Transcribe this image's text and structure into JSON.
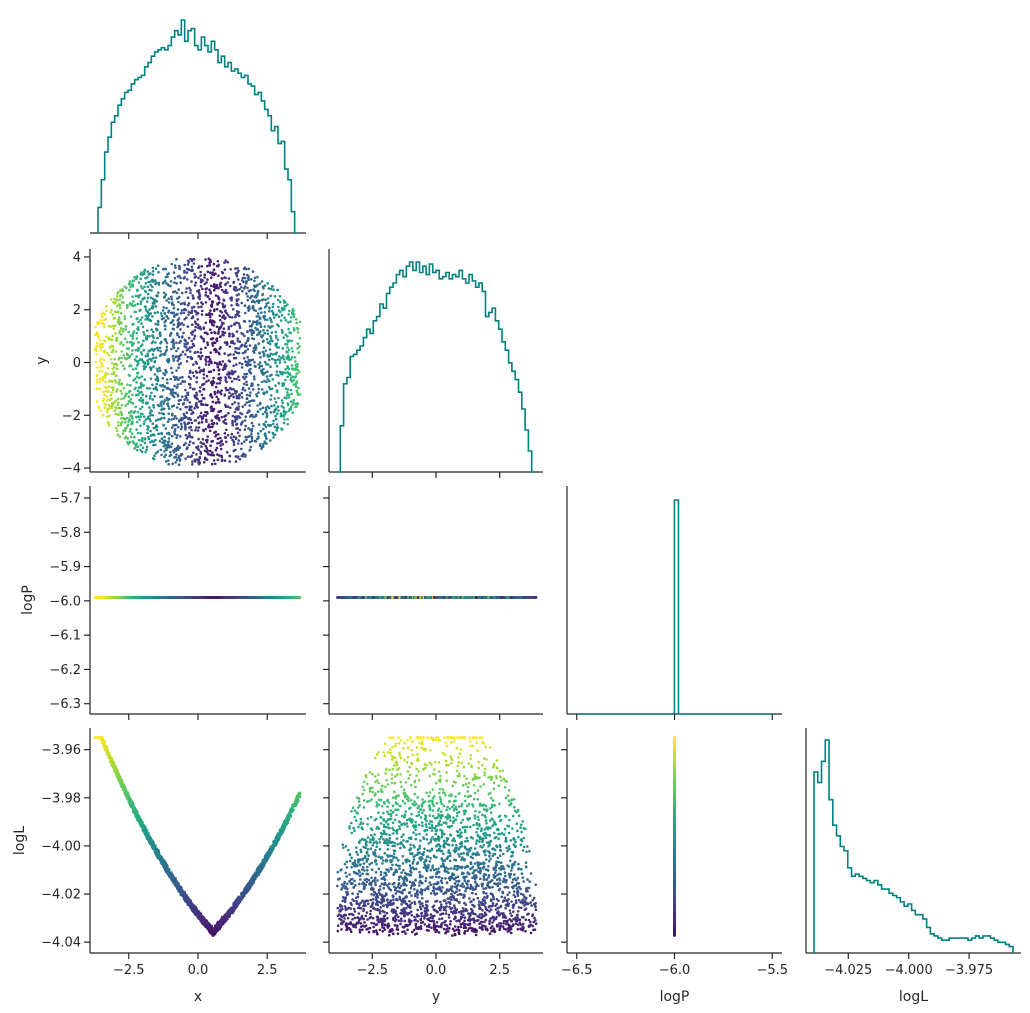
{
  "chart_data": {
    "type": "corner",
    "variables": [
      "x",
      "y",
      "logP",
      "logL"
    ],
    "hist_color": "#008080",
    "scatter_colormap": "viridis",
    "scatter_color_by": "logL",
    "diagonal": [
      {
        "var": "x",
        "type": "histogram-step",
        "range": [
          -3.9,
          3.9
        ],
        "counts": [
          0.12,
          0.25,
          0.38,
          0.45,
          0.52,
          0.55,
          0.6,
          0.63,
          0.66,
          0.67,
          0.7,
          0.72,
          0.73,
          0.74,
          0.78,
          0.8,
          0.83,
          0.85,
          0.86,
          0.87,
          0.86,
          0.88,
          0.92,
          0.95,
          0.93,
          1.0,
          0.9,
          0.95,
          0.96,
          0.88,
          0.86,
          0.92,
          0.88,
          0.85,
          0.9,
          0.86,
          0.8,
          0.83,
          0.78,
          0.8,
          0.76,
          0.77,
          0.75,
          0.73,
          0.74,
          0.7,
          0.69,
          0.65,
          0.66,
          0.62,
          0.58,
          0.55,
          0.48,
          0.5,
          0.42,
          0.43,
          0.3,
          0.25,
          0.1,
          0.0
        ]
      },
      {
        "var": "y",
        "type": "histogram-step",
        "range": [
          -4.0,
          4.0
        ],
        "counts": [
          0.0,
          0.22,
          0.42,
          0.45,
          0.55,
          0.56,
          0.58,
          0.6,
          0.64,
          0.68,
          0.66,
          0.72,
          0.74,
          0.8,
          0.78,
          0.85,
          0.88,
          0.9,
          0.94,
          0.96,
          0.93,
          0.98,
          1.0,
          0.96,
          1.0,
          0.95,
          0.98,
          0.94,
          0.99,
          0.95,
          0.96,
          0.92,
          0.93,
          0.95,
          0.92,
          0.94,
          0.93,
          0.96,
          0.92,
          0.9,
          0.94,
          0.91,
          0.88,
          0.9,
          0.86,
          0.74,
          0.76,
          0.78,
          0.72,
          0.68,
          0.62,
          0.58,
          0.52,
          0.48,
          0.44,
          0.38,
          0.3,
          0.2,
          0.1,
          0.0
        ]
      },
      {
        "var": "logP",
        "type": "histogram-step",
        "range": [
          -6.5,
          -5.5
        ],
        "spike_at": -5.99
      },
      {
        "var": "logL",
        "type": "histogram-step",
        "range": [
          -4.0409,
          -3.9554
        ],
        "counts": [
          0.85,
          0.8,
          0.9,
          1.0,
          0.72,
          0.6,
          0.55,
          0.5,
          0.48,
          0.4,
          0.36,
          0.37,
          0.36,
          0.35,
          0.34,
          0.33,
          0.34,
          0.32,
          0.3,
          0.3,
          0.28,
          0.27,
          0.26,
          0.24,
          0.22,
          0.23,
          0.2,
          0.18,
          0.18,
          0.16,
          0.12,
          0.09,
          0.08,
          0.07,
          0.06,
          0.06,
          0.07,
          0.07,
          0.07,
          0.07,
          0.07,
          0.06,
          0.07,
          0.08,
          0.07,
          0.08,
          0.08,
          0.07,
          0.06,
          0.05,
          0.05,
          0.04,
          0.03
        ]
      }
    ],
    "ticks": {
      "x": {
        "lim": [
          -3.9,
          3.9
        ],
        "values": [
          -2.5,
          0.0,
          2.5
        ],
        "labels": [
          "−2.5",
          "0.0",
          "2.5"
        ]
      },
      "y": {
        "lim": [
          -4.15,
          4.3
        ],
        "values": [
          -4,
          -2,
          0,
          2,
          4
        ],
        "labels": [
          "−4",
          "−2",
          "0",
          "2",
          "4"
        ]
      },
      "y_xaxis": {
        "lim": [
          -4.2,
          4.2
        ],
        "values": [
          -2.5,
          0.0,
          2.5
        ],
        "labels": [
          "−2.5",
          "0.0",
          "2.5"
        ]
      },
      "logP": {
        "lim": [
          -6.33,
          -5.665
        ],
        "values": [
          -5.7,
          -5.8,
          -5.9,
          -6.0,
          -6.1,
          -6.2,
          -6.3
        ],
        "labels": [
          "−5.7",
          "−5.8",
          "−5.9",
          "−6.0",
          "−6.1",
          "−6.2",
          "−6.3"
        ]
      },
      "logP_xaxis": {
        "lim": [
          -6.55,
          -5.45
        ],
        "values": [
          -6.5,
          -6.0,
          -5.5
        ],
        "labels": [
          "−6.5",
          "−6.0",
          "−5.5"
        ]
      },
      "logL": {
        "lim": [
          -4.0445,
          -3.951
        ],
        "values": [
          -3.96,
          -3.98,
          -4.0,
          -4.02,
          -4.04
        ],
        "labels": [
          "−3.96",
          "−3.98",
          "−4.00",
          "−4.02",
          "−4.04"
        ]
      },
      "logL_xaxis": {
        "lim": [
          -4.0425,
          -3.9535
        ],
        "values": [
          -4.025,
          -4.0,
          -3.975
        ],
        "labels": [
          "−4.025",
          "−4.000",
          "−3.975"
        ]
      }
    },
    "panels": [
      {
        "row": 1,
        "col": 0,
        "x": "x",
        "y": "y",
        "kind": "scatter",
        "description_shape": "disk radius 4"
      },
      {
        "row": 2,
        "col": 0,
        "x": "x",
        "y": "logP",
        "kind": "scatter",
        "constant_y": -5.99
      },
      {
        "row": 2,
        "col": 1,
        "x": "y",
        "y": "logP",
        "kind": "scatter",
        "constant_y": -5.99
      },
      {
        "row": 3,
        "col": 0,
        "x": "x",
        "y": "logL",
        "kind": "scatter"
      },
      {
        "row": 3,
        "col": 1,
        "x": "y",
        "y": "logL",
        "kind": "scatter"
      },
      {
        "row": 3,
        "col": 2,
        "x": "logP",
        "y": "logL",
        "kind": "scatter",
        "constant_x": -6.0
      }
    ],
    "axis_labels": {
      "x": "x",
      "y": "y",
      "logP": "logP",
      "logL": "logL"
    }
  }
}
